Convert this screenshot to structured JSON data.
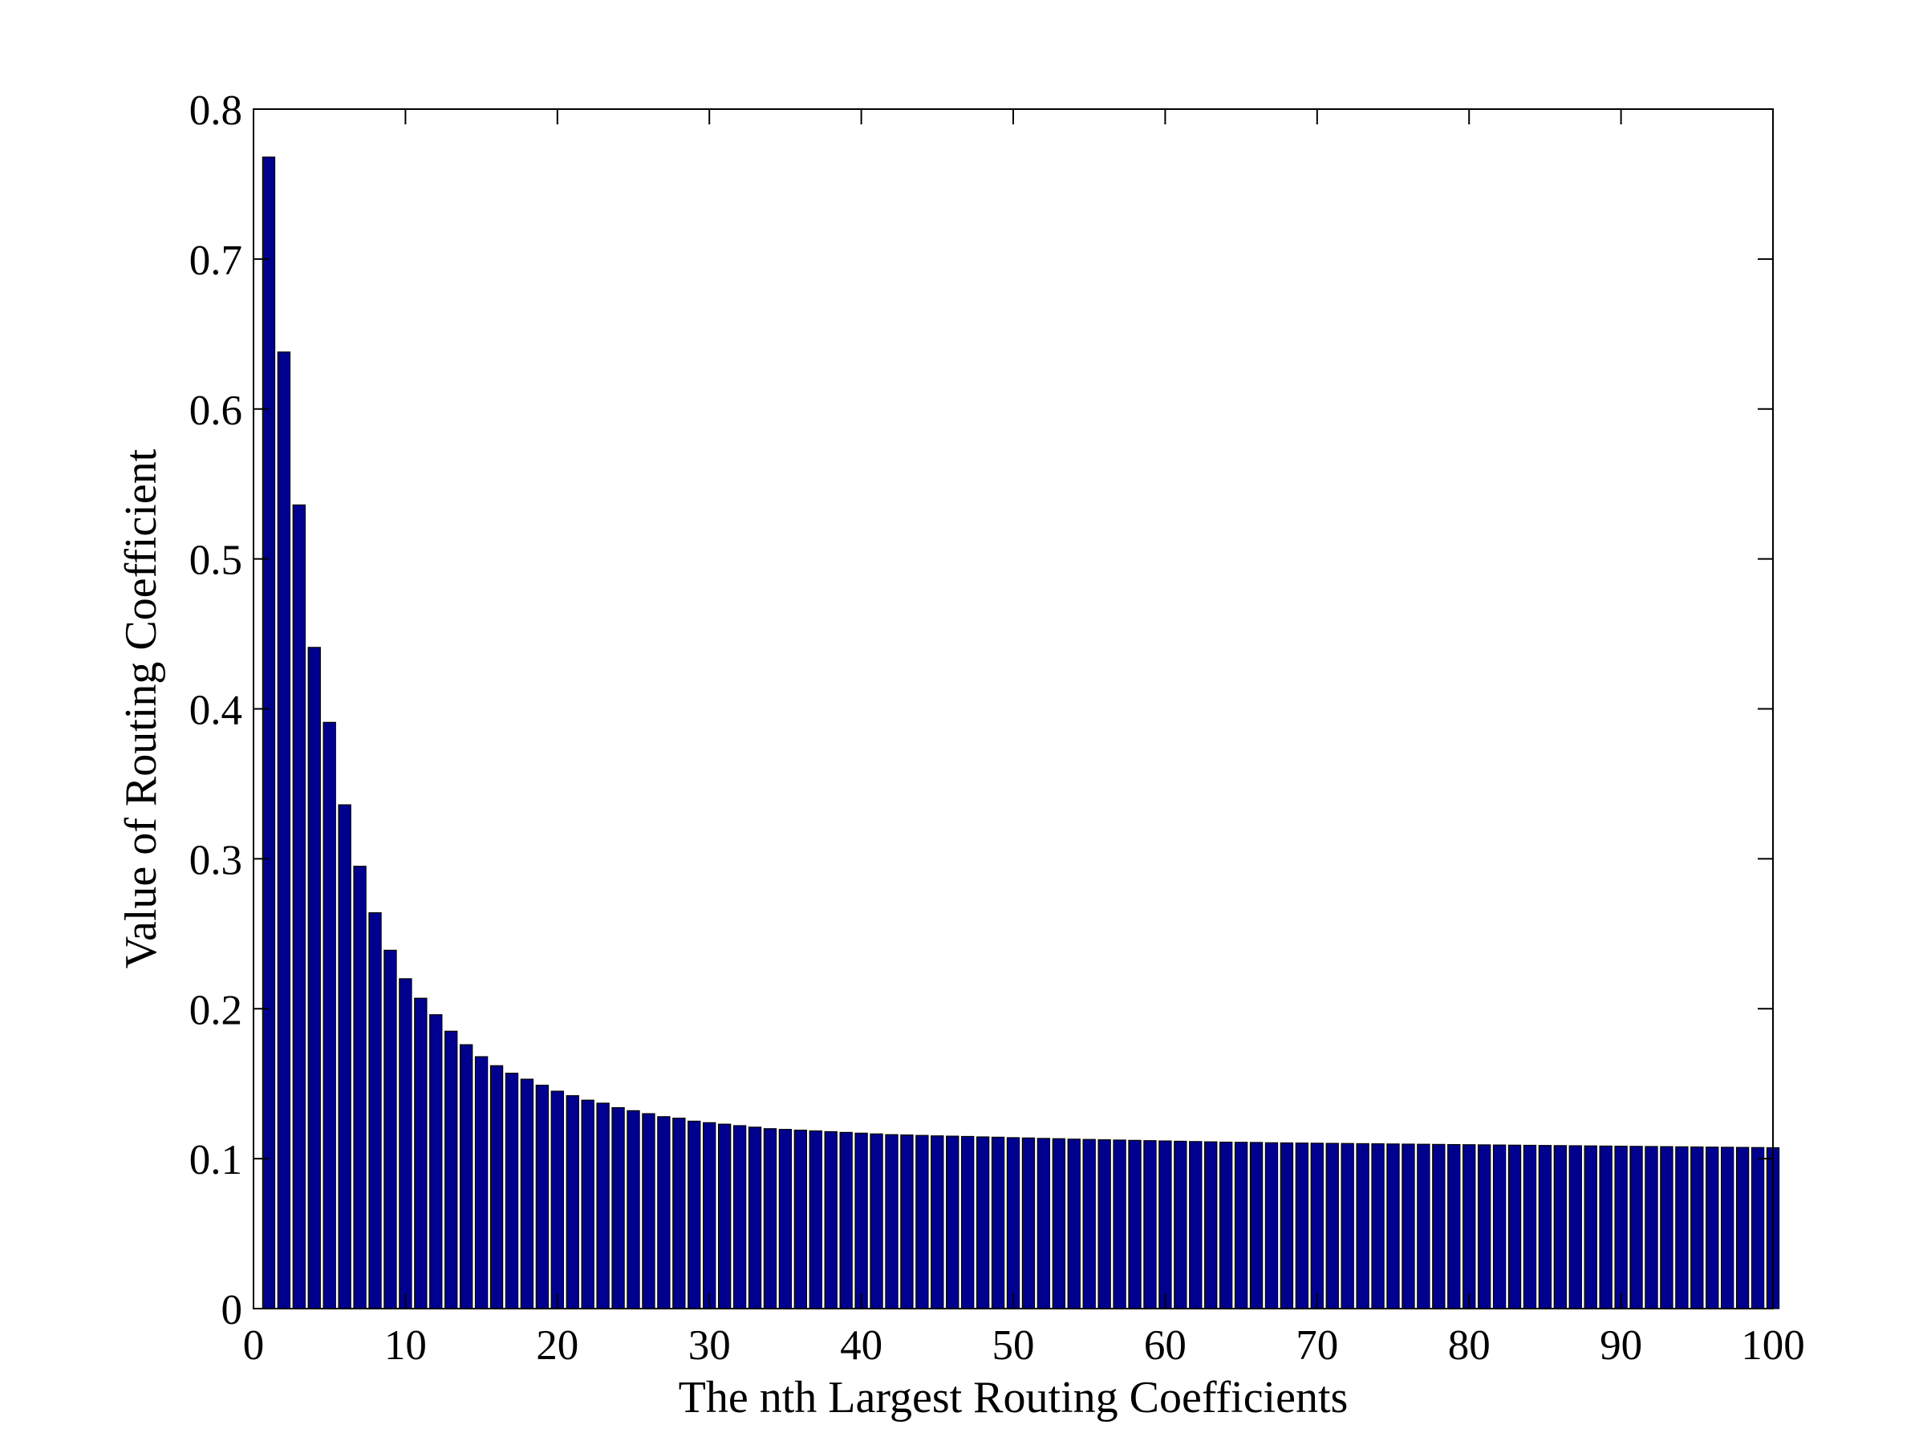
{
  "chart_data": {
    "type": "bar",
    "title": "",
    "xlabel": "The nth Largest Routing Coefficients",
    "ylabel": "Value of Routing Coefficient",
    "xlim": [
      0,
      100
    ],
    "ylim": [
      0,
      0.8
    ],
    "xticks": [
      0,
      10,
      20,
      30,
      40,
      50,
      60,
      70,
      80,
      90,
      100
    ],
    "xtick_labels": [
      "0",
      "10",
      "20",
      "30",
      "40",
      "50",
      "60",
      "70",
      "80",
      "90",
      "100"
    ],
    "yticks": [
      0,
      0.1,
      0.2,
      0.3,
      0.4,
      0.5,
      0.6,
      0.7,
      0.8
    ],
    "ytick_labels": [
      "0",
      "0.1",
      "0.2",
      "0.3",
      "0.4",
      "0.5",
      "0.6",
      "0.7",
      "0.8"
    ],
    "grid": false,
    "bar_color": "#00008f",
    "edge_color": "#000000",
    "x": [
      1,
      2,
      3,
      4,
      5,
      6,
      7,
      8,
      9,
      10,
      11,
      12,
      13,
      14,
      15,
      16,
      17,
      18,
      19,
      20,
      21,
      22,
      23,
      24,
      25,
      26,
      27,
      28,
      29,
      30,
      31,
      32,
      33,
      34,
      35,
      36,
      37,
      38,
      39,
      40,
      41,
      42,
      43,
      44,
      45,
      46,
      47,
      48,
      49,
      50,
      51,
      52,
      53,
      54,
      55,
      56,
      57,
      58,
      59,
      60,
      61,
      62,
      63,
      64,
      65,
      66,
      67,
      68,
      69,
      70,
      71,
      72,
      73,
      74,
      75,
      76,
      77,
      78,
      79,
      80,
      81,
      82,
      83,
      84,
      85,
      86,
      87,
      88,
      89,
      90,
      91,
      92,
      93,
      94,
      95,
      96,
      97,
      98,
      99,
      100
    ],
    "values": [
      0.768,
      0.638,
      0.536,
      0.441,
      0.391,
      0.336,
      0.295,
      0.264,
      0.239,
      0.22,
      0.207,
      0.196,
      0.185,
      0.176,
      0.168,
      0.162,
      0.157,
      0.153,
      0.149,
      0.145,
      0.142,
      0.139,
      0.137,
      0.134,
      0.132,
      0.13,
      0.128,
      0.127,
      0.125,
      0.124,
      0.123,
      0.122,
      0.121,
      0.12,
      0.1195,
      0.119,
      0.1185,
      0.118,
      0.1175,
      0.117,
      0.1165,
      0.116,
      0.1158,
      0.1155,
      0.1152,
      0.115,
      0.1148,
      0.1145,
      0.1143,
      0.114,
      0.1138,
      0.1135,
      0.1133,
      0.113,
      0.1128,
      0.1126,
      0.1124,
      0.1122,
      0.112,
      0.1118,
      0.1116,
      0.1114,
      0.1112,
      0.111,
      0.1109,
      0.1108,
      0.1106,
      0.1105,
      0.1104,
      0.1103,
      0.1102,
      0.1101,
      0.11,
      0.1099,
      0.1098,
      0.1097,
      0.1096,
      0.1095,
      0.1094,
      0.1093,
      0.1092,
      0.1091,
      0.109,
      0.1089,
      0.1088,
      0.1087,
      0.1086,
      0.1085,
      0.1084,
      0.1083,
      0.1082,
      0.1081,
      0.108,
      0.1079,
      0.1078,
      0.1077,
      0.1076,
      0.1075,
      0.1074,
      0.1073
    ]
  }
}
